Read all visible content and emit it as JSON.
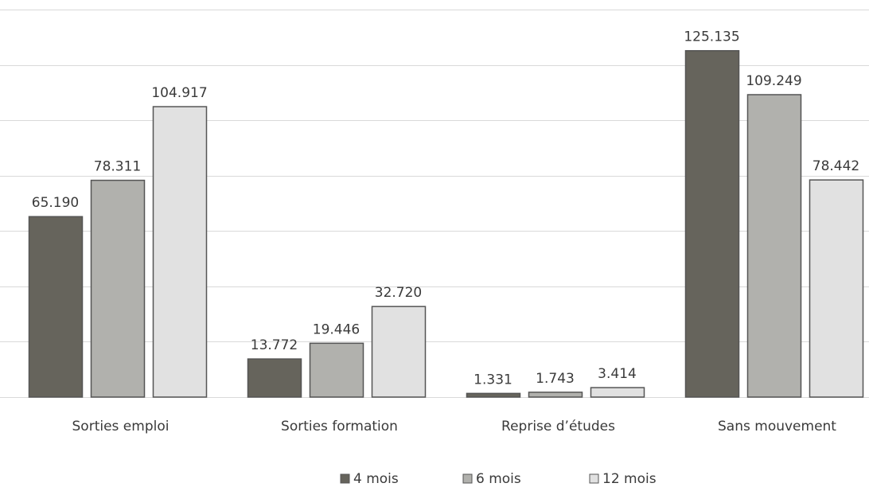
{
  "chart_data": {
    "type": "bar",
    "title": "",
    "xlabel": "",
    "ylabel": "",
    "categories": [
      "Sorties emploi",
      "Sorties formation",
      "Reprise d’études",
      "Sans mouvement"
    ],
    "series": [
      {
        "name": "4 mois",
        "values": [
          65.19,
          13.772,
          1.331,
          125.135
        ],
        "labels": [
          "65.190",
          "13.772",
          "1.331",
          "125.135"
        ],
        "color": "#66645c"
      },
      {
        "name": "6 mois",
        "values": [
          78.311,
          19.446,
          1.743,
          109.249
        ],
        "labels": [
          "78.311",
          "19.446",
          "1.743",
          "109.249"
        ],
        "color": "#b1b1ad"
      },
      {
        "name": "12 mois",
        "values": [
          104.917,
          32.72,
          3.414,
          78.442
        ],
        "labels": [
          "104.917",
          "32.720",
          "3.414",
          "78.442"
        ],
        "color": "#e1e1e1"
      }
    ],
    "ylim": [
      0,
      140
    ],
    "gridlines": [
      0,
      20,
      40,
      60,
      80,
      100,
      120,
      140
    ],
    "grid": true,
    "legend_position": "bottom-center",
    "bar_stroke_color": "#555555",
    "grid_color": "#d9d9d9"
  }
}
